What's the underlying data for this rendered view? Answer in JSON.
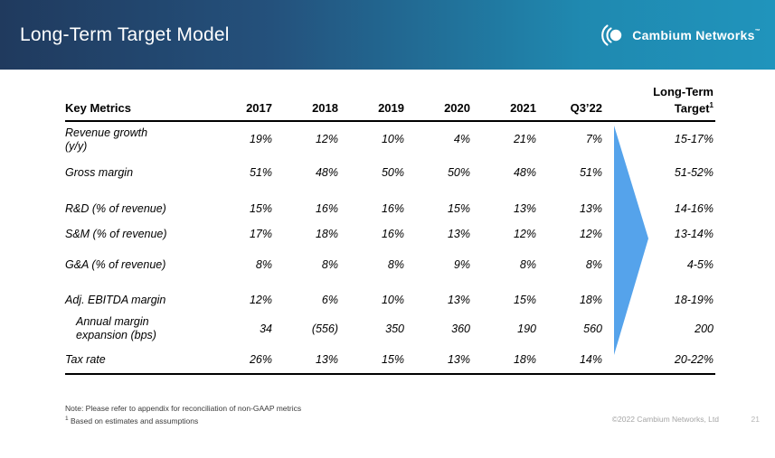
{
  "banner": {
    "title": "Long-Term Target Model",
    "logo_text": "Cambium Networks",
    "logo_tm": "™"
  },
  "colors": {
    "banner_left": "#203A5E",
    "banner_right": "#2094BC",
    "arrow_blue": "#55A3EB"
  },
  "table": {
    "metric_header": "Key Metrics",
    "year_headers": [
      "2017",
      "2018",
      "2019",
      "2020",
      "2021",
      "Q3’22"
    ],
    "target_header": {
      "line1": "Long-Term",
      "line2": "Target",
      "sup": "1"
    },
    "rows": [
      {
        "metric": "Revenue growth\n(y/y)",
        "indent": false,
        "values": [
          "19%",
          "12%",
          "10%",
          "4%",
          "21%",
          "7%",
          "15-17%"
        ]
      },
      {
        "metric": "Gross margin",
        "indent": false,
        "values": [
          "51%",
          "48%",
          "50%",
          "50%",
          "48%",
          "51%",
          "51-52%"
        ]
      },
      {
        "metric": "R&D (% of revenue)",
        "indent": false,
        "values": [
          "15%",
          "16%",
          "16%",
          "15%",
          "13%",
          "13%",
          "14-16%"
        ]
      },
      {
        "metric": "S&M (% of revenue)",
        "indent": false,
        "values": [
          "17%",
          "18%",
          "16%",
          "13%",
          "12%",
          "12%",
          "13-14%"
        ]
      },
      {
        "metric": "G&A (% of revenue)",
        "indent": false,
        "values": [
          "8%",
          "8%",
          "8%",
          "9%",
          "8%",
          "8%",
          "4-5%"
        ]
      },
      {
        "metric": "Adj. EBITDA margin",
        "indent": false,
        "values": [
          "12%",
          "6%",
          "10%",
          "13%",
          "15%",
          "18%",
          "18-19%"
        ]
      },
      {
        "metric": "Annual margin\nexpansion (bps)",
        "indent": true,
        "values": [
          "34",
          "(556)",
          "350",
          "360",
          "190",
          "560",
          "200"
        ]
      },
      {
        "metric": "Tax rate",
        "indent": false,
        "values": [
          "26%",
          "13%",
          "15%",
          "13%",
          "18%",
          "14%",
          "20-22%"
        ]
      }
    ]
  },
  "footer": {
    "note1": "Note: Please refer to appendix for reconciliation of non-GAAP metrics",
    "note2_sup": "1",
    "note2": " Based on estimates and assumptions",
    "copyright": "©2022 Cambium Networks, Ltd",
    "page_number": "21"
  }
}
